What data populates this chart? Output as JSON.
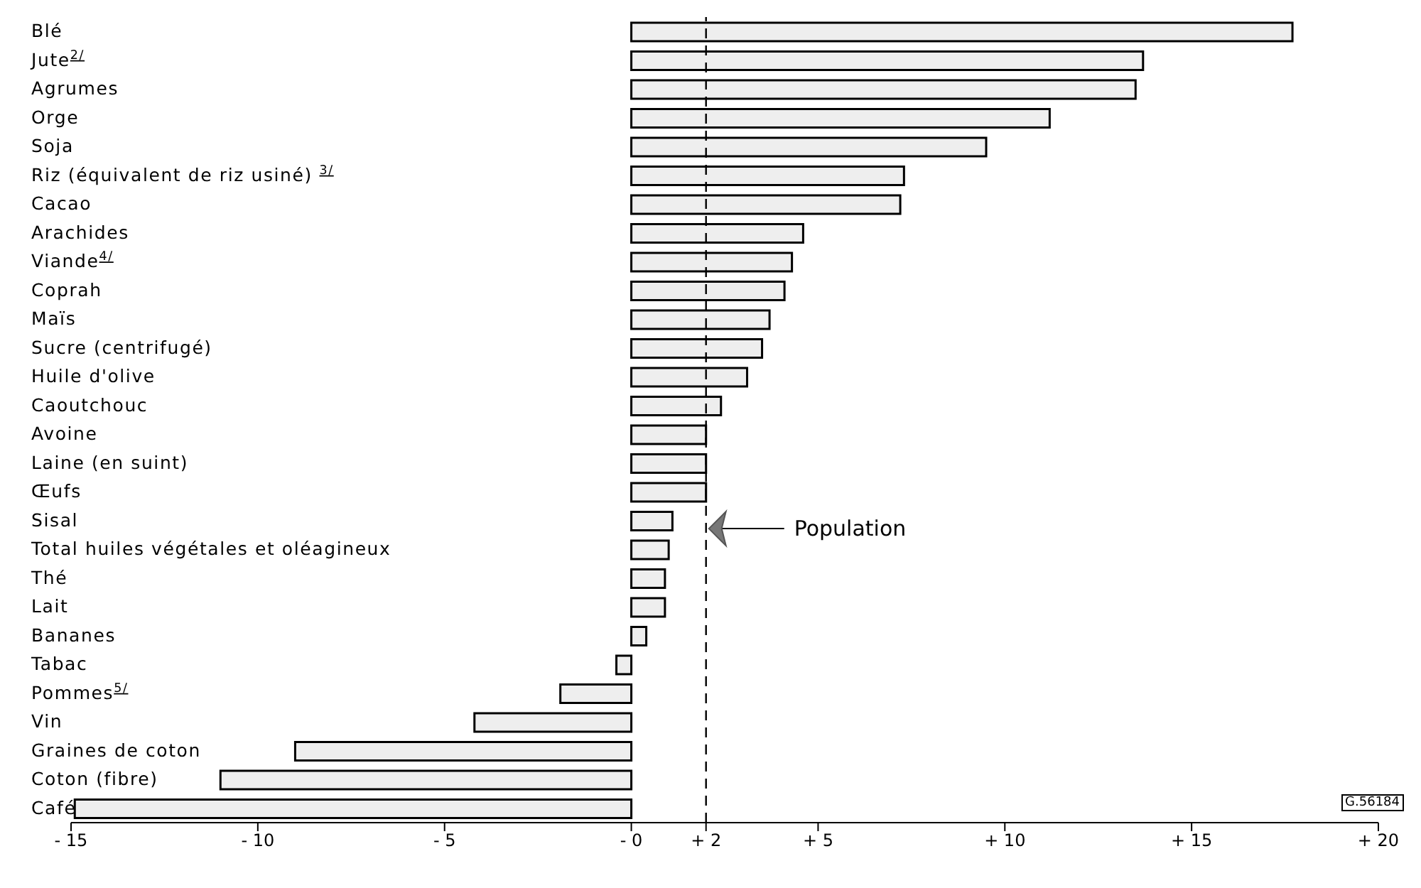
{
  "chart_data": {
    "type": "bar",
    "orientation": "horizontal",
    "categories": [
      "Blé",
      "Jute$^{2/}$",
      "Agrumes",
      "Orge",
      "Soja",
      "Riz (équivalent de riz usiné) $^{3/}$",
      "Cacao",
      "Arachides",
      "Viande$^{4/}$",
      "Coprah",
      "Maïs",
      "Sucre (centrifugé)",
      "Huile d'olive",
      "Caoutchouc",
      "Avoine",
      "Laine (en suint)",
      "Œufs",
      "Sisal",
      "Total huiles végétales et oléagineux",
      "Thé",
      "Lait",
      "Bananes",
      "Tabac",
      "Pommes$^{5/}$",
      "Vin",
      "Graines de coton",
      "Coton (fibre)",
      "Café"
    ],
    "values": [
      17.7,
      13.7,
      13.5,
      11.2,
      9.5,
      7.3,
      7.2,
      4.6,
      4.3,
      4.1,
      3.7,
      3.5,
      3.1,
      2.4,
      2.0,
      2.0,
      2.0,
      1.1,
      1.0,
      0.9,
      0.9,
      0.4,
      -0.4,
      -1.9,
      -4.2,
      -9.0,
      -11.0,
      -14.9
    ],
    "color": "#eeeeee",
    "xlim": [
      -15,
      20
    ],
    "xticks": [
      {
        "value": -15,
        "label": "- 15"
      },
      {
        "value": -10,
        "label": "- 10"
      },
      {
        "value": -5,
        "label": "- 5"
      },
      {
        "value": 0,
        "label": "- 0"
      },
      {
        "value": 2,
        "label": "+ 2"
      },
      {
        "value": 5,
        "label": "+ 5"
      },
      {
        "value": 10,
        "label": "+ 10"
      },
      {
        "value": 15,
        "label": "+ 15"
      },
      {
        "value": 20,
        "label": "+ 20"
      }
    ],
    "ref_lines": [
      {
        "axis": "x",
        "value": 2,
        "label": "Population",
        "line_style": "dashed",
        "color": "#000000"
      }
    ],
    "annotations": [
      "G.56184"
    ],
    "grid": false,
    "legend": false
  }
}
